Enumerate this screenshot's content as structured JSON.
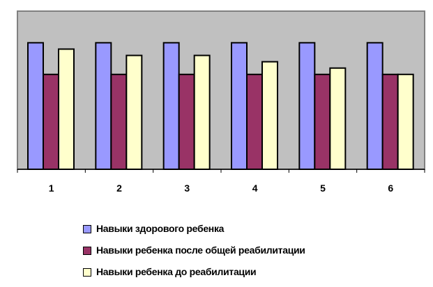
{
  "chart_data": {
    "type": "bar",
    "title": "",
    "xlabel": "",
    "ylabel": "",
    "categories": [
      "1",
      "2",
      "3",
      "4",
      "5",
      "6"
    ],
    "ylim": [
      0,
      5
    ],
    "grid": false,
    "legend_position": "bottom",
    "series": [
      {
        "name": "Навыки здорового ребенка",
        "color": "#9999FF",
        "values": [
          4,
          4,
          4,
          4,
          4,
          4
        ]
      },
      {
        "name": "Навыки ребенка после общей реабилитации",
        "color": "#993366",
        "values": [
          3,
          3,
          3,
          3,
          3,
          3
        ]
      },
      {
        "name": "Навыки ребенка до реабилитации",
        "color": "#FFFFCC",
        "values": [
          3.8,
          3.6,
          3.6,
          3.4,
          3.2,
          3.0
        ]
      }
    ],
    "plot_background": "#C0C0C0"
  }
}
